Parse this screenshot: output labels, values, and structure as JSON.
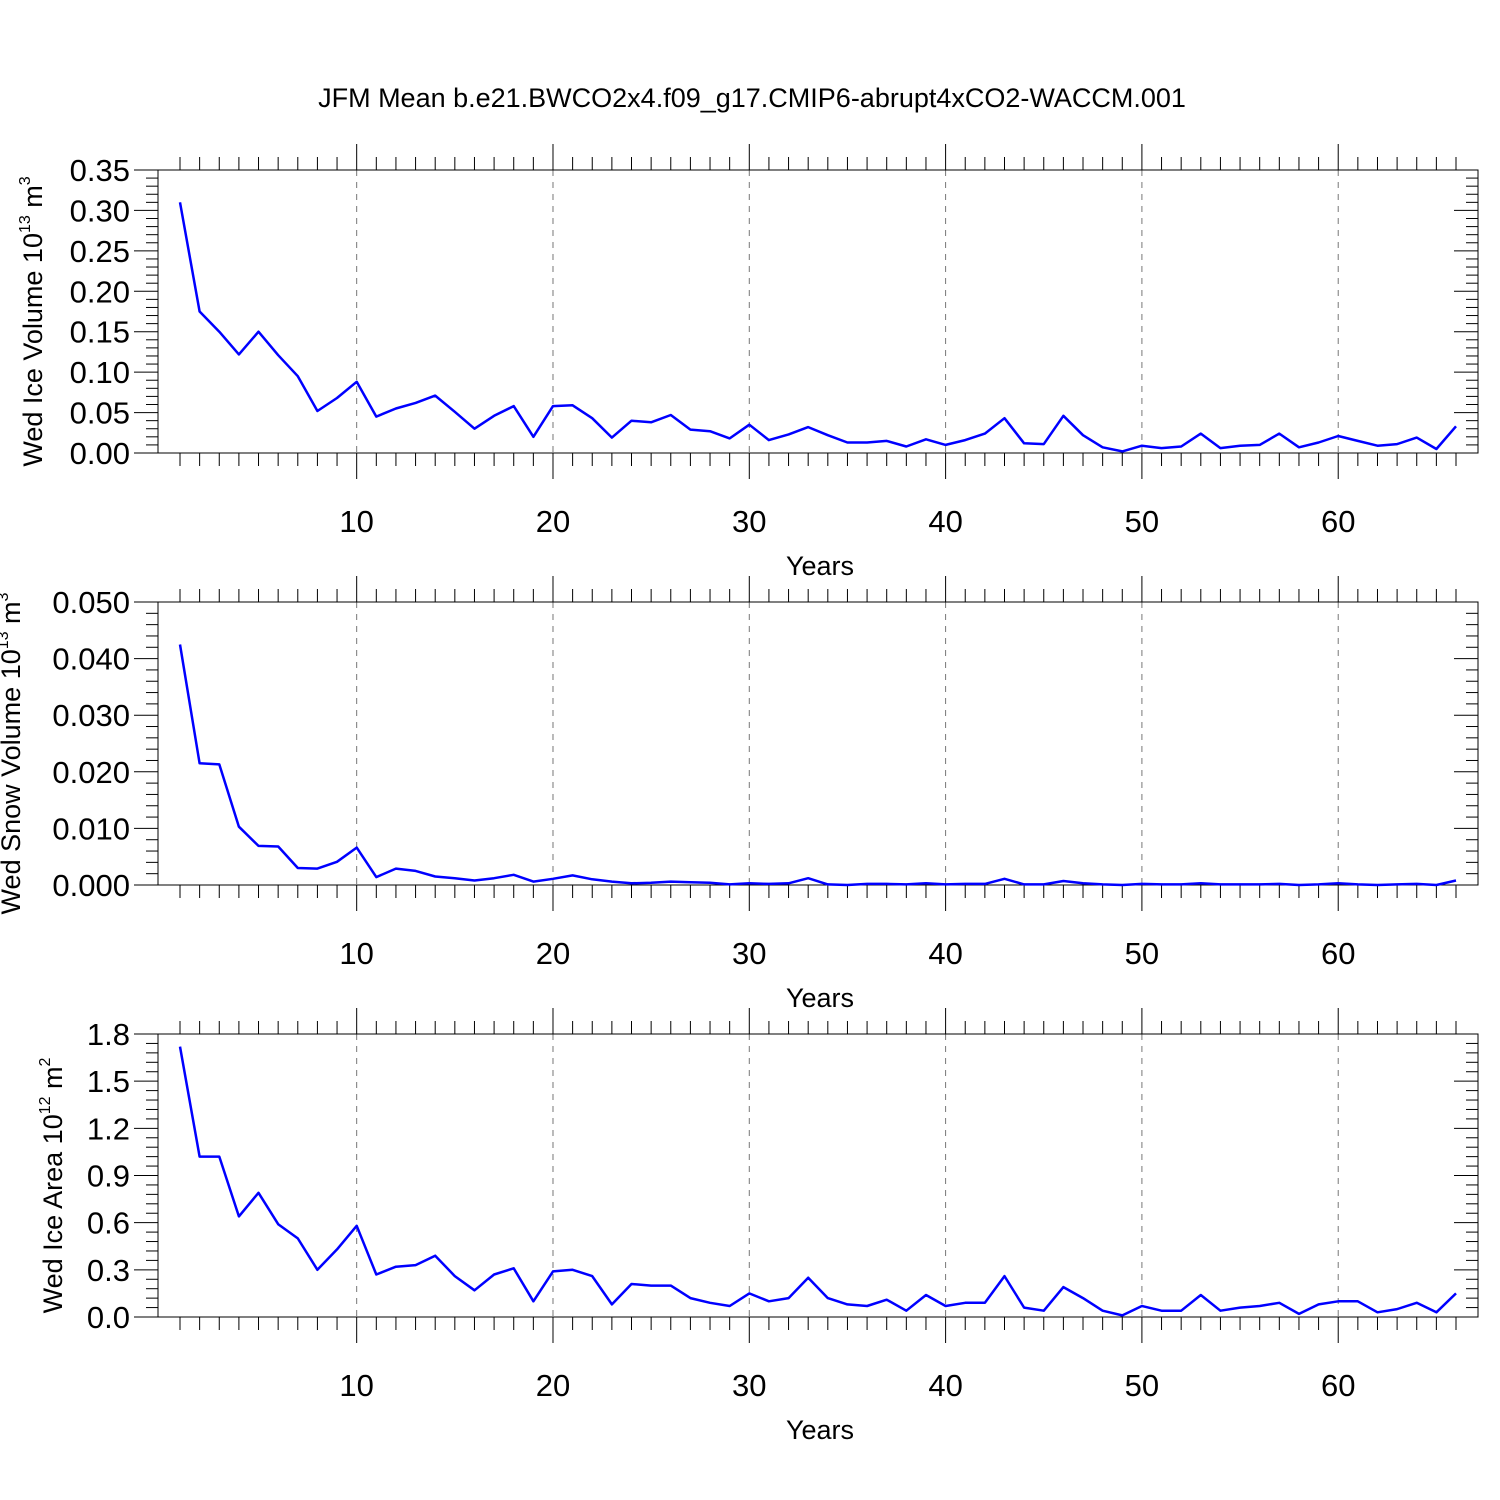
{
  "title": "JFM Mean b.e21.BWCO2x4.f09_g17.CMIP6-abrupt4xCO2-WACCM.001",
  "colors": {
    "line": "#0000ff",
    "axis": "#000000",
    "grid": "#777777"
  },
  "chart_data": [
    {
      "type": "line",
      "xlabel": "Years",
      "ylabel": {
        "base": "Wed Ice Volume 10",
        "exp": "13",
        "unit": " m",
        "unit_exp": "3"
      },
      "xlim": [
        1,
        66
      ],
      "ylim": [
        0,
        0.35
      ],
      "xticks": [
        10,
        20,
        30,
        40,
        50,
        60
      ],
      "yticks": [
        0,
        0.05,
        0.1,
        0.15,
        0.2,
        0.25,
        0.3,
        0.35
      ],
      "ytick_labels": [
        "0.00",
        "0.05",
        "0.10",
        "0.15",
        "0.20",
        "0.25",
        "0.30",
        "0.35"
      ],
      "grid": "vertical dashed at x ticks",
      "series": [
        {
          "x": [
            1,
            2,
            3,
            4,
            5,
            6,
            7,
            8,
            9,
            10,
            11,
            12,
            13,
            14,
            15,
            16,
            17,
            18,
            19,
            20,
            21,
            22,
            23,
            24,
            25,
            26,
            27,
            28,
            29,
            30,
            31,
            32,
            33,
            34,
            35,
            36,
            37,
            38,
            39,
            40,
            41,
            42,
            43,
            44,
            45,
            46,
            47,
            48,
            49,
            50,
            51,
            52,
            53,
            54,
            55,
            56,
            57,
            58,
            59,
            60,
            61,
            62,
            63,
            64,
            65,
            66
          ],
          "values": [
            0.31,
            0.175,
            0.15,
            0.122,
            0.15,
            0.121,
            0.095,
            0.052,
            0.068,
            0.088,
            0.045,
            0.055,
            0.062,
            0.071,
            0.051,
            0.03,
            0.046,
            0.058,
            0.02,
            0.058,
            0.059,
            0.043,
            0.019,
            0.04,
            0.038,
            0.047,
            0.029,
            0.027,
            0.018,
            0.035,
            0.016,
            0.023,
            0.032,
            0.022,
            0.013,
            0.013,
            0.015,
            0.008,
            0.017,
            0.01,
            0.016,
            0.024,
            0.043,
            0.012,
            0.011,
            0.046,
            0.022,
            0.007,
            0.002,
            0.009,
            0.006,
            0.008,
            0.024,
            0.006,
            0.009,
            0.01,
            0.024,
            0.007,
            0.013,
            0.021,
            0.015,
            0.009,
            0.011,
            0.019,
            0.005,
            0.033
          ]
        }
      ]
    },
    {
      "type": "line",
      "xlabel": "Years",
      "ylabel": {
        "base": "Wed Snow Volume 10",
        "exp": "13",
        "unit": " m",
        "unit_exp": "3"
      },
      "xlim": [
        1,
        66
      ],
      "ylim": [
        0,
        0.05
      ],
      "xticks": [
        10,
        20,
        30,
        40,
        50,
        60
      ],
      "yticks": [
        0,
        0.01,
        0.02,
        0.03,
        0.04,
        0.05
      ],
      "ytick_labels": [
        "0.000",
        "0.010",
        "0.020",
        "0.030",
        "0.040",
        "0.050"
      ],
      "grid": "vertical dashed at x ticks",
      "series": [
        {
          "x": [
            1,
            2,
            3,
            4,
            5,
            6,
            7,
            8,
            9,
            10,
            11,
            12,
            13,
            14,
            15,
            16,
            17,
            18,
            19,
            20,
            21,
            22,
            23,
            24,
            25,
            26,
            27,
            28,
            29,
            30,
            31,
            32,
            33,
            34,
            35,
            36,
            37,
            38,
            39,
            40,
            41,
            42,
            43,
            44,
            45,
            46,
            47,
            48,
            49,
            50,
            51,
            52,
            53,
            54,
            55,
            56,
            57,
            58,
            59,
            60,
            61,
            62,
            63,
            64,
            65,
            66
          ],
          "values": [
            0.0425,
            0.0215,
            0.0213,
            0.0103,
            0.0069,
            0.0068,
            0.003,
            0.0029,
            0.0041,
            0.0066,
            0.0014,
            0.0029,
            0.0025,
            0.0015,
            0.0012,
            0.0008,
            0.0012,
            0.0018,
            0.0006,
            0.0011,
            0.0017,
            0.001,
            0.0006,
            0.0003,
            0.0004,
            0.0006,
            0.0005,
            0.0004,
            0.0001,
            0.0003,
            0.0002,
            0.0003,
            0.0012,
            0.0001,
            0.0,
            0.0002,
            0.0002,
            0.0001,
            0.0003,
            0.0001,
            0.0002,
            0.0002,
            0.0011,
            0.0001,
            0.0001,
            0.0007,
            0.0003,
            0.0001,
            0.0,
            0.0002,
            0.0001,
            0.0001,
            0.0003,
            0.0001,
            0.0001,
            0.0001,
            0.0002,
            0.0,
            0.0001,
            0.0003,
            0.0001,
            0.0,
            0.0001,
            0.0002,
            0.0,
            0.0008
          ]
        }
      ]
    },
    {
      "type": "line",
      "xlabel": "Years",
      "ylabel": {
        "base": "Wed Ice Area 10",
        "exp": "12",
        "unit": " m",
        "unit_exp": "2"
      },
      "xlim": [
        1,
        66
      ],
      "ylim": [
        0,
        1.8
      ],
      "xticks": [
        10,
        20,
        30,
        40,
        50,
        60
      ],
      "yticks": [
        0,
        0.3,
        0.6,
        0.9,
        1.2,
        1.5,
        1.8
      ],
      "ytick_labels": [
        "0.0",
        "0.3",
        "0.6",
        "0.9",
        "1.2",
        "1.5",
        "1.8"
      ],
      "grid": "vertical dashed at x ticks",
      "series": [
        {
          "x": [
            1,
            2,
            3,
            4,
            5,
            6,
            7,
            8,
            9,
            10,
            11,
            12,
            13,
            14,
            15,
            16,
            17,
            18,
            19,
            20,
            21,
            22,
            23,
            24,
            25,
            26,
            27,
            28,
            29,
            30,
            31,
            32,
            33,
            34,
            35,
            36,
            37,
            38,
            39,
            40,
            41,
            42,
            43,
            44,
            45,
            46,
            47,
            48,
            49,
            50,
            51,
            52,
            53,
            54,
            55,
            56,
            57,
            58,
            59,
            60,
            61,
            62,
            63,
            64,
            65,
            66
          ],
          "values": [
            1.72,
            1.02,
            1.02,
            0.64,
            0.79,
            0.59,
            0.5,
            0.3,
            0.43,
            0.58,
            0.27,
            0.32,
            0.33,
            0.39,
            0.26,
            0.17,
            0.27,
            0.31,
            0.1,
            0.29,
            0.3,
            0.26,
            0.08,
            0.21,
            0.2,
            0.2,
            0.12,
            0.09,
            0.07,
            0.15,
            0.1,
            0.12,
            0.25,
            0.12,
            0.08,
            0.07,
            0.11,
            0.04,
            0.14,
            0.07,
            0.09,
            0.09,
            0.26,
            0.06,
            0.04,
            0.19,
            0.12,
            0.04,
            0.01,
            0.07,
            0.04,
            0.04,
            0.14,
            0.04,
            0.06,
            0.07,
            0.09,
            0.02,
            0.08,
            0.1,
            0.1,
            0.03,
            0.05,
            0.09,
            0.03,
            0.15
          ]
        }
      ]
    }
  ]
}
